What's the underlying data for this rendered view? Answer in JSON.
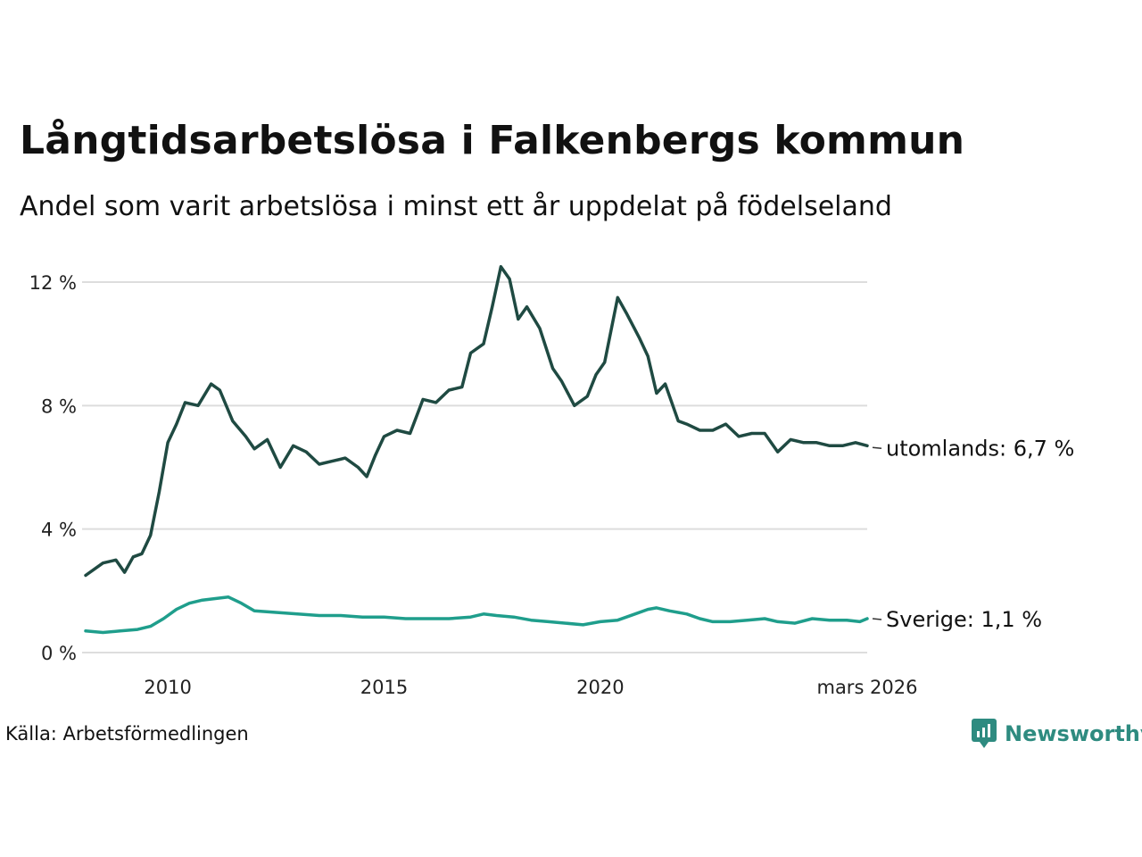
{
  "title": "Långtidsarbetslösa i Falkenbergs kommun",
  "subtitle": "Andel som varit arbetslösa i minst ett år uppdelat på födelseland",
  "source": "Källa: Arbetsförmedlingen",
  "brand": {
    "name": "Newsworthy",
    "icon": "newsworthy-logo-icon",
    "color": "#2e8b80"
  },
  "colors": {
    "utomlands": "#1f4a42",
    "sverige": "#1f9e8c",
    "grid": "#dddddd"
  },
  "chart_data": {
    "type": "line",
    "title": "Långtidsarbetslösa i Falkenbergs kommun",
    "ylim": [
      0,
      12.5
    ],
    "xlim": [
      2008.1,
      2026.17
    ],
    "yticks": [
      0,
      4,
      8,
      12
    ],
    "ytick_labels": [
      "0 %",
      "4 %",
      "8 %",
      "12 %"
    ],
    "xticks": [
      2010,
      2015,
      2020,
      2026.17
    ],
    "xtick_labels": [
      "2010",
      "2015",
      "2020",
      "mars 2026"
    ],
    "grid": true,
    "series": [
      {
        "name": "utomlands",
        "end_label": "utomlands: 6,7 %",
        "x": [
          2008.1,
          2008.5,
          2008.8,
          2009.0,
          2009.2,
          2009.4,
          2009.6,
          2009.8,
          2010.0,
          2010.2,
          2010.4,
          2010.7,
          2011.0,
          2011.2,
          2011.5,
          2011.8,
          2012.0,
          2012.3,
          2012.6,
          2012.9,
          2013.2,
          2013.5,
          2013.8,
          2014.1,
          2014.4,
          2014.6,
          2014.8,
          2015.0,
          2015.3,
          2015.6,
          2015.9,
          2016.2,
          2016.5,
          2016.8,
          2017.0,
          2017.3,
          2017.5,
          2017.7,
          2017.9,
          2018.1,
          2018.3,
          2018.6,
          2018.9,
          2019.1,
          2019.4,
          2019.7,
          2019.9,
          2020.1,
          2020.4,
          2020.6,
          2020.9,
          2021.1,
          2021.3,
          2021.5,
          2021.8,
          2022.0,
          2022.3,
          2022.6,
          2022.9,
          2023.2,
          2023.5,
          2023.8,
          2024.1,
          2024.4,
          2024.7,
          2025.0,
          2025.3,
          2025.6,
          2025.9,
          2026.17
        ],
        "values": [
          2.5,
          2.9,
          3.0,
          2.6,
          3.1,
          3.2,
          3.8,
          5.2,
          6.8,
          7.4,
          8.1,
          8.0,
          8.7,
          8.5,
          7.5,
          7.0,
          6.6,
          6.9,
          6.0,
          6.7,
          6.5,
          6.1,
          6.2,
          6.3,
          6.0,
          5.7,
          6.4,
          7.0,
          7.2,
          7.1,
          8.2,
          8.1,
          8.5,
          8.6,
          9.7,
          10.0,
          11.2,
          12.5,
          12.1,
          10.8,
          11.2,
          10.5,
          9.2,
          8.8,
          8.0,
          8.3,
          9.0,
          9.4,
          11.5,
          11.0,
          10.2,
          9.6,
          8.4,
          8.7,
          7.5,
          7.4,
          7.2,
          7.2,
          7.4,
          7.0,
          7.1,
          7.1,
          6.5,
          6.9,
          6.8,
          6.8,
          6.7,
          6.7,
          6.8,
          6.7
        ]
      },
      {
        "name": "Sverige",
        "end_label": "Sverige: 1,1 %",
        "x": [
          2008.1,
          2008.5,
          2008.9,
          2009.3,
          2009.6,
          2009.9,
          2010.2,
          2010.5,
          2010.8,
          2011.1,
          2011.4,
          2011.7,
          2012.0,
          2012.5,
          2013.0,
          2013.5,
          2014.0,
          2014.5,
          2015.0,
          2015.5,
          2016.0,
          2016.5,
          2017.0,
          2017.3,
          2017.6,
          2018.0,
          2018.4,
          2018.8,
          2019.2,
          2019.6,
          2020.0,
          2020.4,
          2020.8,
          2021.1,
          2021.3,
          2021.6,
          2022.0,
          2022.3,
          2022.6,
          2023.0,
          2023.4,
          2023.8,
          2024.1,
          2024.5,
          2024.9,
          2025.3,
          2025.7,
          2026.0,
          2026.17
        ],
        "values": [
          0.7,
          0.65,
          0.7,
          0.75,
          0.85,
          1.1,
          1.4,
          1.6,
          1.7,
          1.75,
          1.8,
          1.6,
          1.35,
          1.3,
          1.25,
          1.2,
          1.2,
          1.15,
          1.15,
          1.1,
          1.1,
          1.1,
          1.15,
          1.25,
          1.2,
          1.15,
          1.05,
          1.0,
          0.95,
          0.9,
          1.0,
          1.05,
          1.25,
          1.4,
          1.45,
          1.35,
          1.25,
          1.1,
          1.0,
          1.0,
          1.05,
          1.1,
          1.0,
          0.95,
          1.1,
          1.05,
          1.05,
          1.0,
          1.1
        ]
      }
    ]
  }
}
